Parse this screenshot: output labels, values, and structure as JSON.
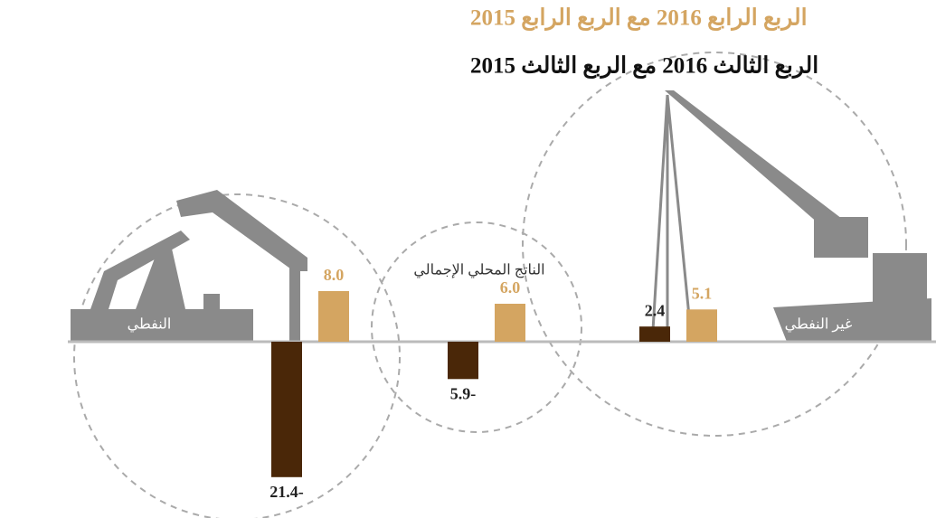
{
  "chart_data": {
    "type": "bar",
    "categories": [
      "النفطي",
      "الناتج المحلي الإجمالي",
      "غير النفطي"
    ],
    "series": [
      {
        "name": "الربع الرابع 2016 مع الربع الرابع 2015",
        "color": "#d4a561",
        "values": [
          8.0,
          6.0,
          5.1
        ],
        "value_labels": [
          "8.0",
          "6.0",
          "5.1"
        ]
      },
      {
        "name": "الربع الثالث 2016 مع الربع الثالث 2015",
        "color": "#4a2708",
        "values": [
          -21.4,
          -5.9,
          2.4
        ],
        "value_labels": [
          "21.4-",
          "5.9-",
          "2.4"
        ]
      }
    ]
  }
}
